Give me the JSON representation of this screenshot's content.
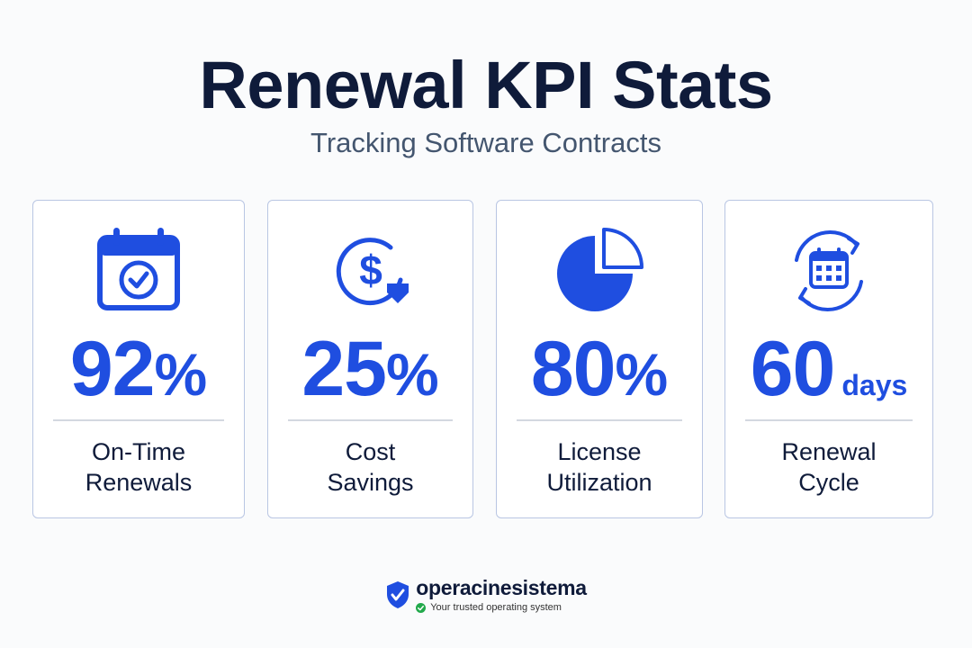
{
  "header": {
    "title": "Renewal KPI Stats",
    "subtitle": "Tracking Software Contracts"
  },
  "colors": {
    "accent": "#1f4ee0",
    "title": "#0f1b3a",
    "card_border": "#b9c6e3",
    "check_green": "#22a94b"
  },
  "cards": [
    {
      "icon": "calendar-check-icon",
      "value": "92",
      "unit": "%",
      "label_line1": "On-Time",
      "label_line2": "Renewals"
    },
    {
      "icon": "dollar-savings-icon",
      "value": "25",
      "unit": "%",
      "label_line1": "Cost",
      "label_line2": "Savings"
    },
    {
      "icon": "pie-chart-icon",
      "value": "80",
      "unit": "%",
      "label_line1": "License",
      "label_line2": "Utilization"
    },
    {
      "icon": "calendar-cycle-icon",
      "value": "60",
      "unit": "days",
      "label_line1": "Renewal",
      "label_line2": "Cycle"
    }
  ],
  "footer": {
    "brand": "operacinesistema",
    "tagline": "Your trusted operating system",
    "logo_icon": "shield-check-icon"
  }
}
